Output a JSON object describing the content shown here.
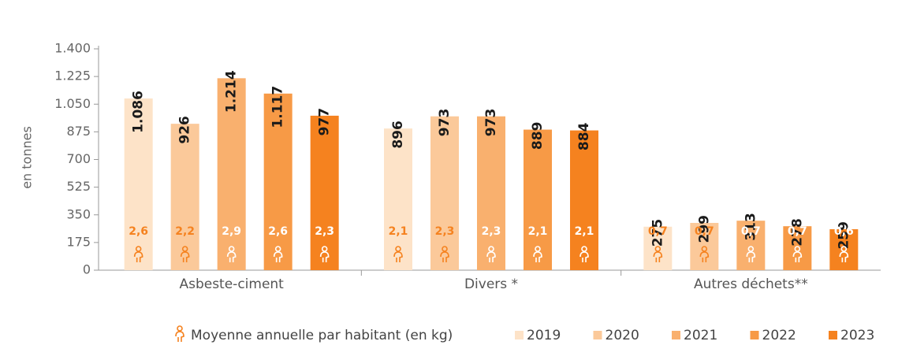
{
  "chart_data": {
    "type": "bar",
    "y_label": "en tonnes",
    "categories": [
      "Asbeste-ciment",
      "Divers *",
      "Autres déchets**"
    ],
    "per_capita_name": "Moyenne annuelle par habitant (en kg)",
    "per_capita_color": "#f5821f",
    "series": [
      {
        "name": "2019",
        "color": "#fde3c8",
        "values": [
          1086,
          896,
          275
        ],
        "value_labels": [
          "1.086",
          "896",
          "275"
        ],
        "per_capita": [
          2.6,
          2.1,
          0.7
        ],
        "per_capita_labels": [
          "2,6",
          "2,1",
          "0,7"
        ]
      },
      {
        "name": "2020",
        "color": "#fbc99a",
        "values": [
          926,
          973,
          299
        ],
        "value_labels": [
          "926",
          "973",
          "299"
        ],
        "per_capita": [
          2.2,
          2.3,
          0.7
        ],
        "per_capita_labels": [
          "2,2",
          "2,3",
          "0,7"
        ]
      },
      {
        "name": "2021",
        "color": "#f9b06e",
        "values": [
          1214,
          973,
          313
        ],
        "value_labels": [
          "1.214",
          "973",
          "313"
        ],
        "per_capita": [
          2.9,
          2.3,
          0.7
        ],
        "per_capita_labels": [
          "2,9",
          "2,3",
          "0,7"
        ]
      },
      {
        "name": "2022",
        "color": "#f79a46",
        "values": [
          1117,
          889,
          278
        ],
        "value_labels": [
          "1.117",
          "889",
          "278"
        ],
        "per_capita": [
          2.6,
          2.1,
          0.7
        ],
        "per_capita_labels": [
          "2,6",
          "2,1",
          "0,7"
        ]
      },
      {
        "name": "2023",
        "color": "#f5821f",
        "values": [
          977,
          884,
          259
        ],
        "value_labels": [
          "977",
          "884",
          "259"
        ],
        "per_capita": [
          2.3,
          2.1,
          0.6
        ],
        "per_capita_labels": [
          "2,3",
          "2,1",
          "0,6"
        ]
      }
    ],
    "ylim": [
      0,
      1400
    ],
    "yticks": [
      0,
      175,
      350,
      525,
      700,
      875,
      {
        "value": 1050,
        "label": "1.050"
      },
      {
        "value": 1225,
        "label": "1.225"
      },
      {
        "value": 1400,
        "label": "1.400"
      }
    ]
  }
}
